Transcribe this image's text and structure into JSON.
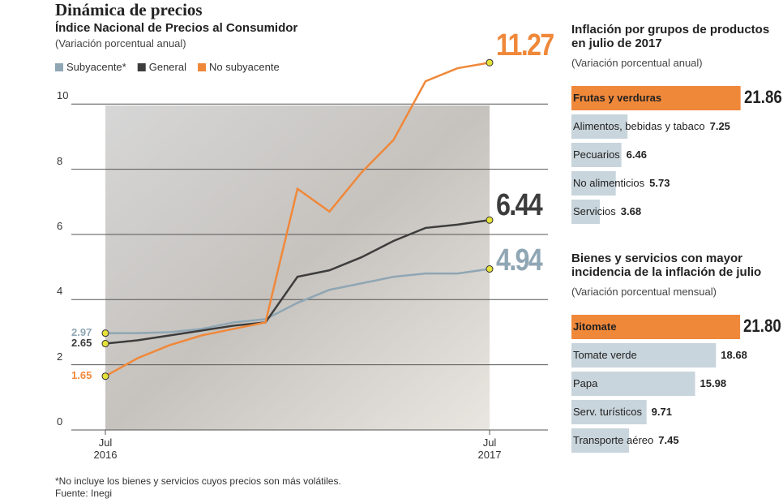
{
  "chart_data": [
    {
      "type": "line",
      "title": "Dinámica de precios",
      "subtitle": "Índice Nacional de Precios al Consumidor",
      "y_label": "(Variación porcentual anual)",
      "categories": [
        "Jul 2016",
        null,
        null,
        null,
        null,
        null,
        null,
        null,
        null,
        null,
        null,
        null,
        "Jul 2017"
      ],
      "series": [
        {
          "name": "Subyacente*",
          "color": "#8fa6b4",
          "values": [
            2.97,
            2.97,
            3.0,
            3.1,
            3.3,
            3.4,
            3.9,
            4.3,
            4.5,
            4.7,
            4.8,
            4.8,
            4.94
          ]
        },
        {
          "name": "General",
          "color": "#3d3d3d",
          "values": [
            2.65,
            2.75,
            2.9,
            3.05,
            3.2,
            3.3,
            4.7,
            4.9,
            5.3,
            5.8,
            6.2,
            6.3,
            6.44
          ]
        },
        {
          "name": "No subyacente",
          "color": "#f0883a",
          "values": [
            1.65,
            2.2,
            2.6,
            2.9,
            3.1,
            3.3,
            7.4,
            6.7,
            7.9,
            8.9,
            10.7,
            11.1,
            11.27
          ]
        }
      ],
      "ylim": [
        0,
        11.5
      ],
      "yticks": [
        0,
        2,
        4,
        6,
        8,
        10
      ],
      "grid": true,
      "note": "*No incluye los bienes y servicios cuyos precios son más volátiles.",
      "source": "Fuente: Inegi"
    },
    {
      "type": "bar",
      "orientation": "horizontal",
      "title": "Inflación por grupos de productos en julio de 2017",
      "subtitle": "(Variación porcentual anual)",
      "categories": [
        "Frutas y verduras",
        "Alimentos, bebidas y tabaco",
        "Pecuarios",
        "No alimenticios",
        "Servicios"
      ],
      "values": [
        21.86,
        7.25,
        6.46,
        5.73,
        3.68
      ],
      "colors": [
        "#f0883a",
        "#c9d5dc",
        "#c9d5dc",
        "#c9d5dc",
        "#c9d5dc"
      ],
      "xlim": [
        0,
        22
      ]
    },
    {
      "type": "bar",
      "orientation": "horizontal",
      "title": "Bienes y servicios con mayor incidencia de la inflación de julio",
      "subtitle": "(Variación porcentual mensual)",
      "categories": [
        "Jitomate",
        "Tomate verde",
        "Papa",
        "Serv. turísticos",
        "Transporte aéreo"
      ],
      "values": [
        21.8,
        18.68,
        15.98,
        9.71,
        7.45
      ],
      "value_labels": [
        "21.80",
        "18.68",
        "15.98",
        "9.71",
        "7.45"
      ],
      "colors": [
        "#f0883a",
        "#c9d5dc",
        "#c9d5dc",
        "#c9d5dc",
        "#c9d5dc"
      ],
      "xlim": [
        0,
        22
      ]
    }
  ]
}
